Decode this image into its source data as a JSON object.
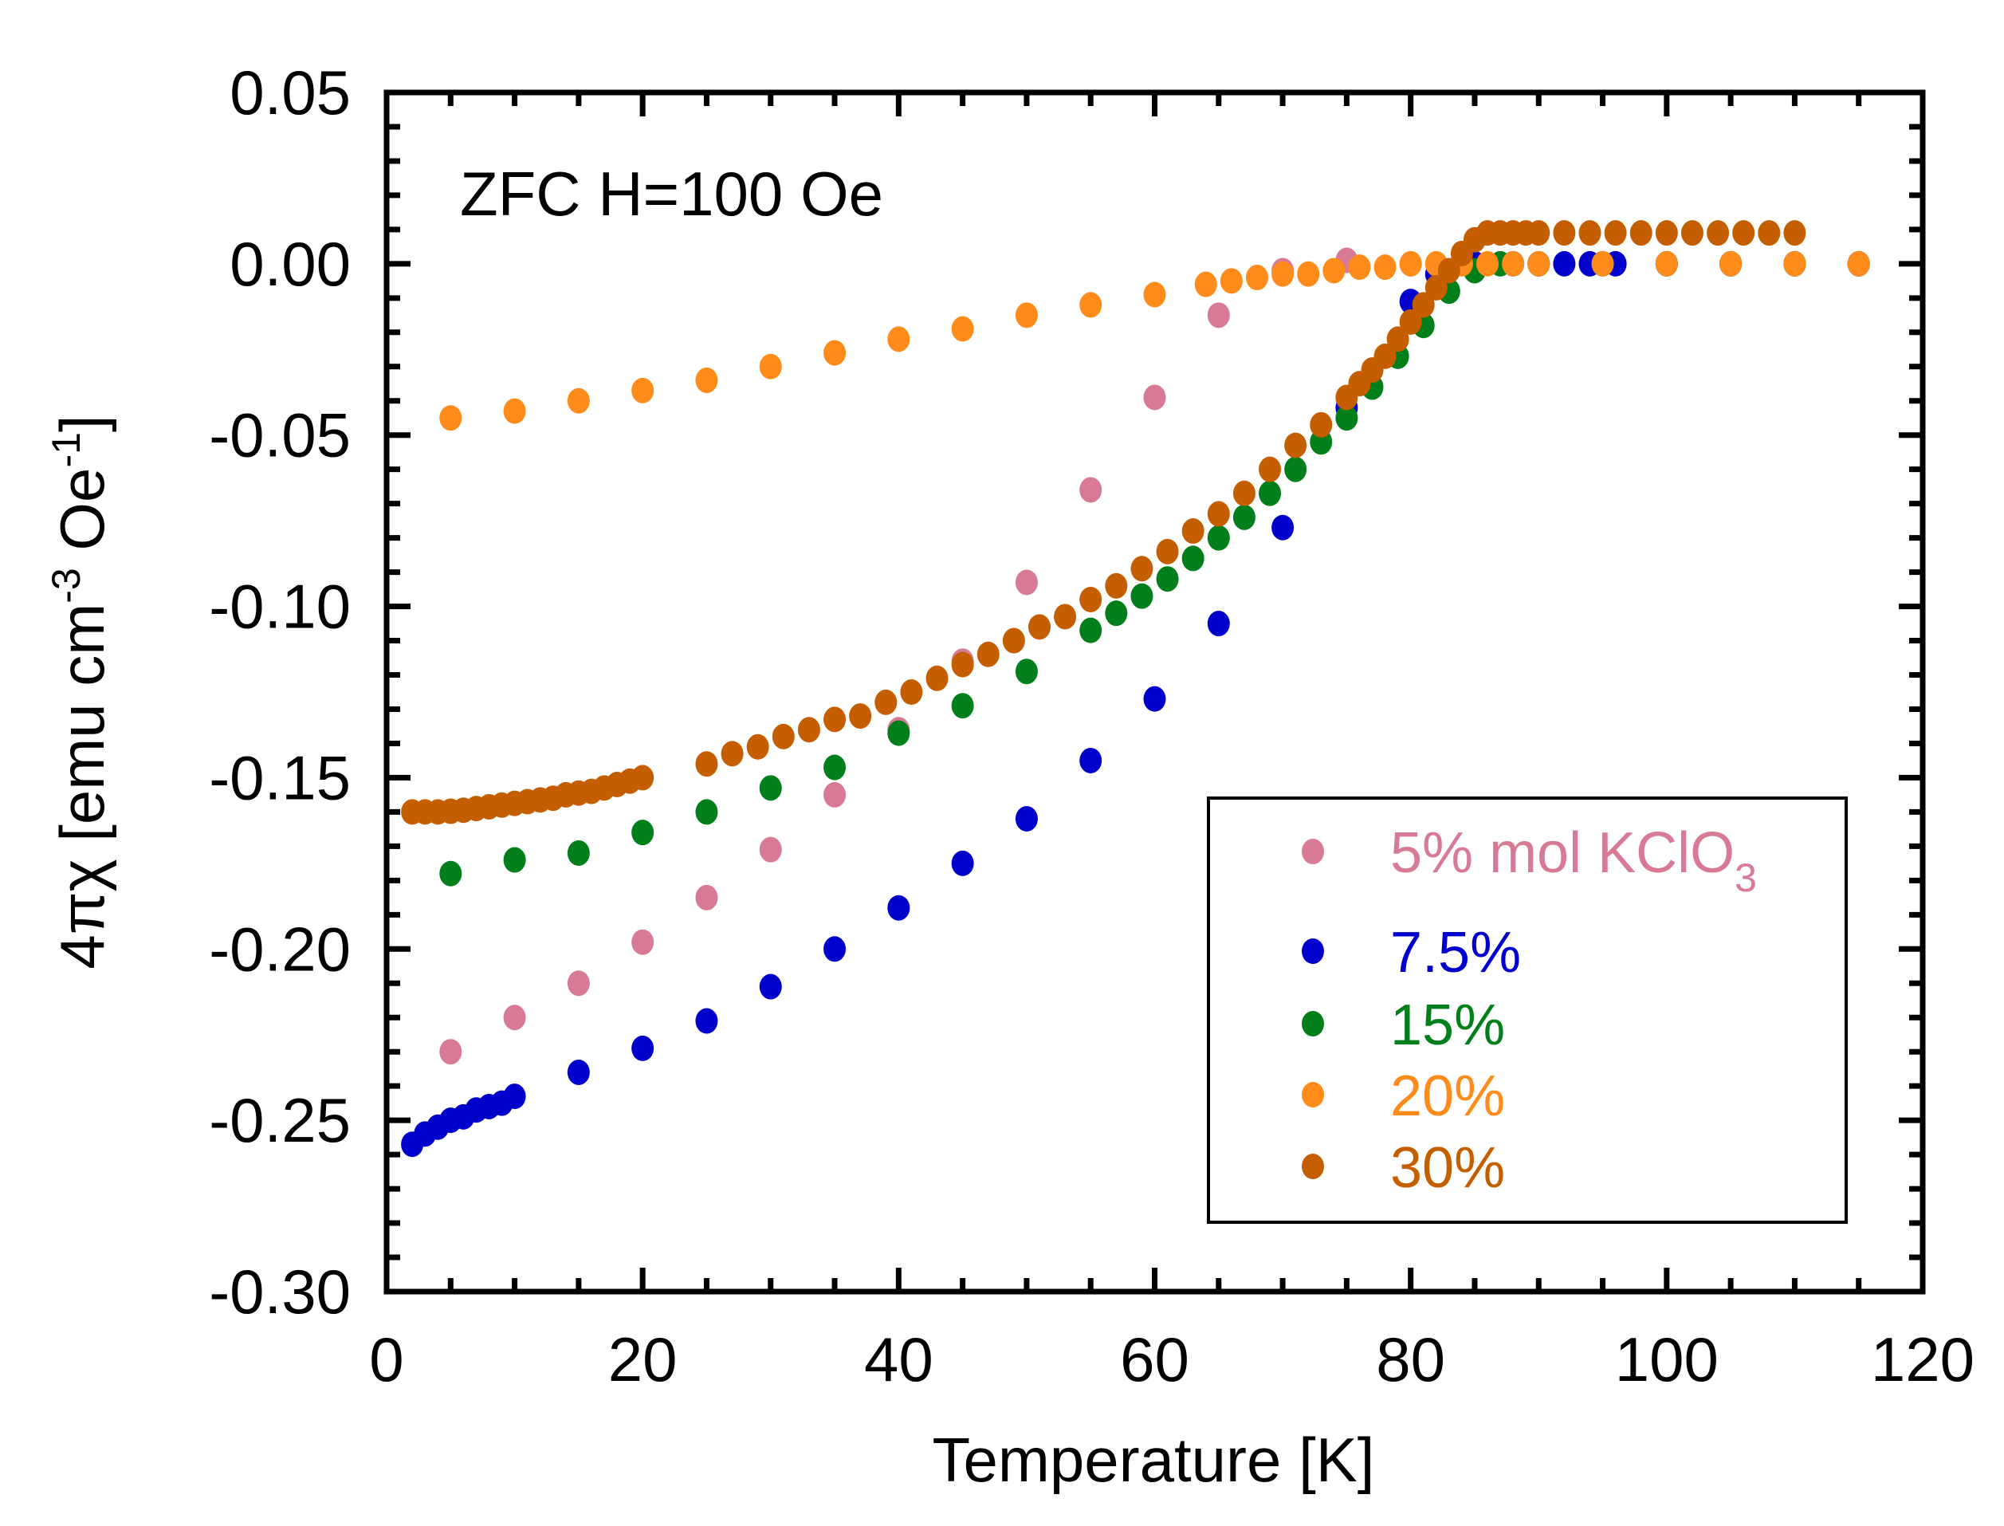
{
  "chart_data": {
    "type": "scatter",
    "title": "",
    "annotation": "ZFC H=100 Oe",
    "xlabel": "Temperature [K]",
    "ylabel": {
      "main": "4πχ [emu cm",
      "sup1": "-3",
      "mid": " Oe",
      "sup2": "-1",
      "end": "]"
    },
    "xlim": [
      0,
      120
    ],
    "ylim": [
      -0.3,
      0.05
    ],
    "xticks": [
      0,
      20,
      40,
      60,
      80,
      100,
      120
    ],
    "xtick_labels": [
      "0",
      "20",
      "40",
      "60",
      "80",
      "100",
      "120"
    ],
    "yticks": [
      0.05,
      0.0,
      -0.05,
      -0.1,
      -0.15,
      -0.2,
      -0.25,
      -0.3
    ],
    "ytick_labels": [
      "0.05",
      "0.00",
      "-0.05",
      "-0.10",
      "-0.15",
      "-0.20",
      "-0.25",
      "-0.30"
    ],
    "legend_placement": "bottom-right",
    "series": [
      {
        "name": "5% mol KClO",
        "sub": "3",
        "color": "#d87a95",
        "x": [
          5,
          10,
          15,
          20,
          25,
          30,
          35,
          40,
          45,
          50,
          55,
          60,
          65,
          70,
          75,
          80,
          85,
          90,
          95,
          100,
          105,
          110,
          115
        ],
        "y": [
          -0.23,
          -0.22,
          -0.21,
          -0.198,
          -0.185,
          -0.171,
          -0.155,
          -0.136,
          -0.116,
          -0.093,
          -0.066,
          -0.039,
          -0.015,
          -0.002,
          0.001,
          0,
          0,
          0,
          0,
          0,
          0,
          0,
          0
        ]
      },
      {
        "name": "7.5%",
        "color": "#0000cc",
        "x": [
          2,
          3,
          4,
          5,
          6,
          7,
          8,
          9,
          10,
          15,
          20,
          25,
          30,
          35,
          40,
          45,
          50,
          55,
          60,
          65,
          70,
          75,
          80,
          82,
          85,
          88,
          90,
          92,
          94,
          96,
          100,
          105,
          110,
          115
        ],
        "y": [
          -0.257,
          -0.254,
          -0.252,
          -0.25,
          -0.249,
          -0.247,
          -0.246,
          -0.245,
          -0.243,
          -0.236,
          -0.229,
          -0.221,
          -0.211,
          -0.2,
          -0.188,
          -0.175,
          -0.162,
          -0.145,
          -0.127,
          -0.105,
          -0.077,
          -0.042,
          -0.011,
          -0.003,
          0,
          0,
          0,
          0,
          0,
          0,
          0,
          0,
          0,
          0
        ]
      },
      {
        "name": "15%",
        "color": "#007f1a",
        "x": [
          5,
          10,
          15,
          20,
          25,
          30,
          35,
          40,
          45,
          50,
          55,
          57,
          59,
          61,
          63,
          65,
          67,
          69,
          71,
          73,
          75,
          77,
          79,
          81,
          83,
          85,
          87,
          90,
          95,
          100,
          105,
          110,
          115
        ],
        "y": [
          -0.178,
          -0.174,
          -0.172,
          -0.166,
          -0.16,
          -0.153,
          -0.147,
          -0.137,
          -0.129,
          -0.119,
          -0.107,
          -0.102,
          -0.097,
          -0.092,
          -0.086,
          -0.08,
          -0.074,
          -0.067,
          -0.06,
          -0.052,
          -0.045,
          -0.036,
          -0.027,
          -0.018,
          -0.008,
          -0.002,
          0,
          0,
          0,
          0,
          0,
          0,
          0
        ]
      },
      {
        "name": "20%",
        "color": "#ff8c1a",
        "x": [
          5,
          10,
          15,
          20,
          25,
          30,
          35,
          40,
          45,
          50,
          55,
          60,
          64,
          66,
          68,
          70,
          72,
          74,
          76,
          78,
          80,
          82,
          84,
          86,
          88,
          90,
          95,
          100,
          105,
          110,
          115
        ],
        "y": [
          -0.045,
          -0.043,
          -0.04,
          -0.037,
          -0.034,
          -0.03,
          -0.026,
          -0.022,
          -0.019,
          -0.015,
          -0.012,
          -0.009,
          -0.006,
          -0.005,
          -0.004,
          -0.003,
          -0.003,
          -0.002,
          -0.001,
          -0.001,
          0,
          0,
          0,
          0,
          0,
          0,
          0,
          0,
          0,
          0,
          0
        ]
      },
      {
        "name": "30%",
        "color": "#c55e00",
        "x": [
          2,
          3,
          4,
          5,
          6,
          7,
          8,
          9,
          10,
          11,
          12,
          13,
          14,
          15,
          16,
          17,
          18,
          19,
          20,
          25,
          27,
          29,
          31,
          33,
          35,
          37,
          39,
          41,
          43,
          45,
          47,
          49,
          51,
          53,
          55,
          57,
          59,
          61,
          63,
          65,
          67,
          69,
          71,
          73,
          75,
          76,
          77,
          78,
          79,
          80,
          81,
          82,
          83,
          84,
          85,
          86,
          87,
          88,
          89,
          90,
          92,
          94,
          96,
          98,
          100,
          102,
          104,
          106,
          108,
          110
        ],
        "y": [
          -0.16,
          -0.16,
          -0.16,
          -0.1598,
          -0.1595,
          -0.159,
          -0.1585,
          -0.158,
          -0.1575,
          -0.157,
          -0.1565,
          -0.156,
          -0.155,
          -0.1545,
          -0.154,
          -0.153,
          -0.152,
          -0.151,
          -0.15,
          -0.146,
          -0.143,
          -0.141,
          -0.138,
          -0.136,
          -0.133,
          -0.132,
          -0.128,
          -0.125,
          -0.121,
          -0.117,
          -0.114,
          -0.11,
          -0.106,
          -0.103,
          -0.098,
          -0.094,
          -0.089,
          -0.084,
          -0.078,
          -0.073,
          -0.067,
          -0.06,
          -0.053,
          -0.047,
          -0.039,
          -0.035,
          -0.031,
          -0.027,
          -0.022,
          -0.017,
          -0.012,
          -0.007,
          -0.002,
          0.003,
          0.007,
          0.009,
          0.009,
          0.009,
          0.009,
          0.009,
          0.009,
          0.009,
          0.009,
          0.009,
          0.009,
          0.009,
          0.009,
          0.009,
          0.009,
          0.009
        ]
      }
    ]
  }
}
